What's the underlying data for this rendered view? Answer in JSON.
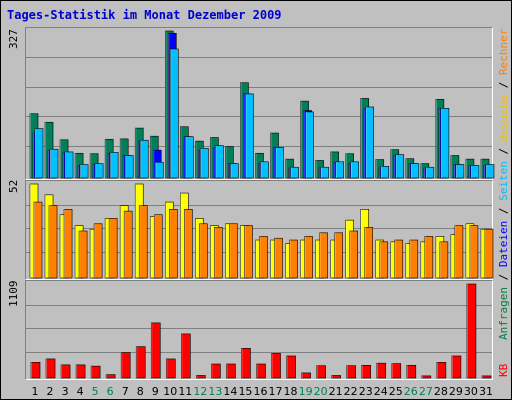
{
  "title": "Tages-Statistik im Monat Dezember 2009",
  "right_legend": {
    "top": [
      {
        "text": "Anfragen",
        "color": "#008040"
      },
      {
        "text": " / ",
        "color": "#000000"
      },
      {
        "text": "Dateien",
        "color": "#0000ff"
      },
      {
        "text": " / ",
        "color": "#000000"
      },
      {
        "text": "Seiten",
        "color": "#00c0ff"
      },
      {
        "text": " / ",
        "color": "#000000"
      },
      {
        "text": "Besuche",
        "color": "#f0c000"
      },
      {
        "text": " / ",
        "color": "#000000"
      },
      {
        "text": "Rechner",
        "color": "#ff8000"
      }
    ],
    "bottom": [
      {
        "text": "KB",
        "color": "#ff0000"
      }
    ]
  },
  "colors": {
    "anfragen": "#00805a",
    "dateien": "#0000ff",
    "seiten": "#00c0ff",
    "besuche": "#ffff00",
    "rechner": "#ff8000",
    "kb": "#ff0000",
    "weekday": "#000000",
    "weekend": "#00805a",
    "gridline": "#808080"
  },
  "chart_data": [
    {
      "type": "bar",
      "panel": "hits",
      "ymax_label": "327",
      "ylim": [
        0,
        327
      ],
      "categories": [
        "1",
        "2",
        "3",
        "4",
        "5",
        "6",
        "7",
        "8",
        "9",
        "10",
        "11",
        "12",
        "13",
        "14",
        "15",
        "16",
        "17",
        "18",
        "19",
        "20",
        "21",
        "22",
        "23",
        "24",
        "25",
        "26",
        "27",
        "28",
        "29",
        "30",
        "31"
      ],
      "series": [
        {
          "name": "Anfragen",
          "values": [
            143,
            124,
            85,
            55,
            54,
            86,
            87,
            111,
            93,
            327,
            114,
            82,
            90,
            70,
            212,
            55,
            100,
            42,
            171,
            39,
            58,
            54,
            177,
            41,
            63,
            43,
            32,
            175,
            50,
            42,
            42
          ]
        },
        {
          "name": "Dateien",
          "values": [
            100,
            62,
            56,
            28,
            30,
            55,
            50,
            82,
            62,
            322,
            92,
            62,
            67,
            32,
            187,
            32,
            68,
            22,
            150,
            22,
            35,
            32,
            155,
            22,
            50,
            32,
            22,
            155,
            30,
            28,
            28
          ]
        },
        {
          "name": "Seiten",
          "values": [
            110,
            64,
            58,
            30,
            32,
            57,
            50,
            84,
            35,
            287,
            92,
            66,
            72,
            32,
            187,
            36,
            68,
            24,
            147,
            24,
            36,
            36,
            158,
            26,
            52,
            32,
            24,
            155,
            30,
            28,
            30
          ]
        }
      ]
    },
    {
      "type": "bar",
      "panel": "visits",
      "ymax_label": "52",
      "ylim": [
        0,
        52
      ],
      "categories": [
        "1",
        "2",
        "3",
        "4",
        "5",
        "6",
        "7",
        "8",
        "9",
        "10",
        "11",
        "12",
        "13",
        "14",
        "15",
        "16",
        "17",
        "18",
        "19",
        "20",
        "21",
        "22",
        "23",
        "24",
        "25",
        "26",
        "27",
        "28",
        "29",
        "30",
        "31"
      ],
      "series": [
        {
          "name": "Besuche",
          "values": [
            52,
            46,
            35,
            29,
            27,
            33,
            40,
            52,
            34,
            42,
            47,
            33,
            29,
            30,
            29,
            21,
            21,
            19,
            21,
            21,
            21,
            32,
            38,
            21,
            20,
            19,
            20,
            23,
            24,
            30,
            27
          ]
        },
        {
          "name": "Rechner",
          "values": [
            42,
            40,
            38,
            26,
            30,
            33,
            37,
            40,
            35,
            38,
            38,
            30,
            28,
            30,
            29,
            23,
            22,
            21,
            23,
            25,
            25,
            26,
            28,
            20,
            21,
            21,
            23,
            20,
            29,
            29,
            27
          ]
        }
      ]
    },
    {
      "type": "bar",
      "panel": "kb",
      "ymax_label": "1109",
      "ylim": [
        0,
        1109
      ],
      "categories": [
        "1",
        "2",
        "3",
        "4",
        "5",
        "6",
        "7",
        "8",
        "9",
        "10",
        "11",
        "12",
        "13",
        "14",
        "15",
        "16",
        "17",
        "18",
        "19",
        "20",
        "21",
        "22",
        "23",
        "24",
        "25",
        "26",
        "27",
        "28",
        "29",
        "30",
        "31"
      ],
      "series": [
        {
          "name": "KB",
          "values": [
            185,
            225,
            155,
            155,
            140,
            40,
            300,
            370,
            650,
            225,
            520,
            30,
            165,
            165,
            350,
            165,
            290,
            260,
            60,
            145,
            30,
            145,
            150,
            175,
            170,
            150,
            25,
            185,
            260,
            1109,
            25
          ]
        }
      ]
    }
  ],
  "x_axis": {
    "labels": [
      "1",
      "2",
      "3",
      "4",
      "5",
      "6",
      "7",
      "8",
      "9",
      "10",
      "11",
      "12",
      "13",
      "14",
      "15",
      "16",
      "17",
      "18",
      "19",
      "20",
      "21",
      "22",
      "23",
      "24",
      "25",
      "26",
      "27",
      "28",
      "29",
      "30",
      "31"
    ],
    "weekend_days": [
      "5",
      "6",
      "12",
      "13",
      "19",
      "20",
      "26",
      "27"
    ]
  }
}
